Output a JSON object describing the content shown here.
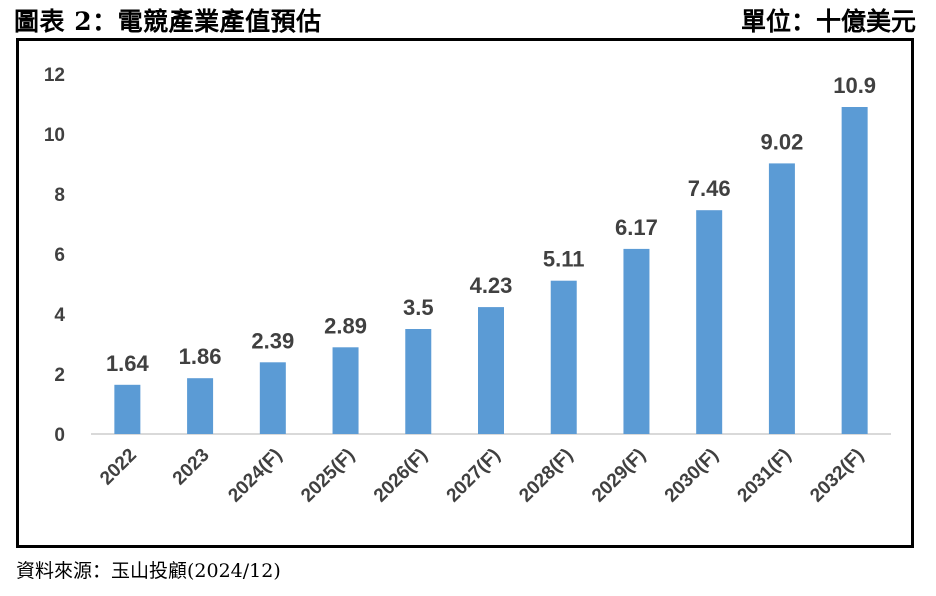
{
  "header": {
    "title": "圖表 2：電競產業產值預估",
    "unit": "單位：十億美元"
  },
  "source": "資料來源：玉山投顧(2024/12)",
  "colors": {
    "bar": "#5B9BD5",
    "text": "#404040",
    "axis": "#D9D9D9"
  },
  "chart_data": {
    "type": "bar",
    "categories": [
      "2022",
      "2023",
      "2024(F)",
      "2025(F)",
      "2026(F)",
      "2027(F)",
      "2028(F)",
      "2029(F)",
      "2030(F)",
      "2031(F)",
      "2032(F)"
    ],
    "values": [
      1.64,
      1.86,
      2.39,
      2.89,
      3.5,
      4.23,
      5.11,
      6.17,
      7.46,
      9.02,
      10.9
    ],
    "data_labels": [
      "1.64",
      "1.86",
      "2.39",
      "2.89",
      "3.5",
      "4.23",
      "5.11",
      "6.17",
      "7.46",
      "9.02",
      "10.9"
    ],
    "ylim": [
      0,
      12
    ],
    "yticks": [
      0,
      2,
      4,
      6,
      8,
      10,
      12
    ],
    "grid": false,
    "legend": "none"
  }
}
